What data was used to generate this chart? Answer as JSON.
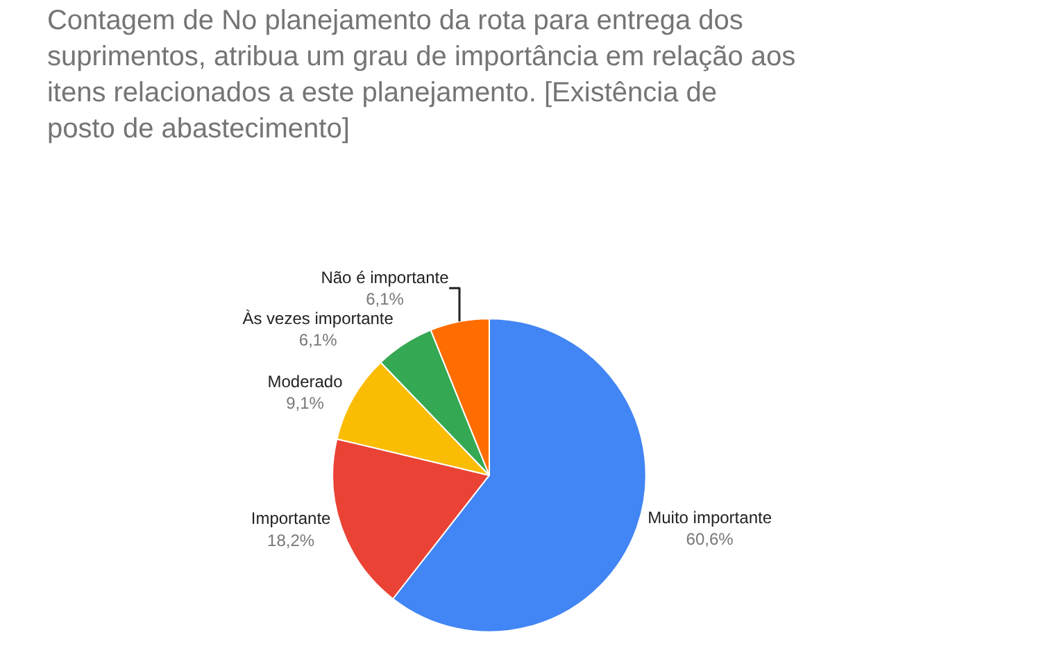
{
  "chart_data": {
    "type": "pie",
    "title": "Contagem de No planejamento da rota para entrega dos suprimentos, atribua um grau de importância em relação aos itens relacionados a este planejamento. [Existência de posto de abastecimento]",
    "categories": [
      "Muito importante",
      "Importante",
      "Moderado",
      "Às vezes importante",
      "Não é importante"
    ],
    "values": [
      60.6,
      18.2,
      9.1,
      6.1,
      6.1
    ],
    "value_labels": [
      "60,6%",
      "18,2%",
      "9,1%",
      "6,1%",
      "6,1%"
    ],
    "colors": [
      "#4285f4",
      "#ea4335",
      "#fbbc04",
      "#34a853",
      "#ff6d01"
    ],
    "legend": false
  }
}
